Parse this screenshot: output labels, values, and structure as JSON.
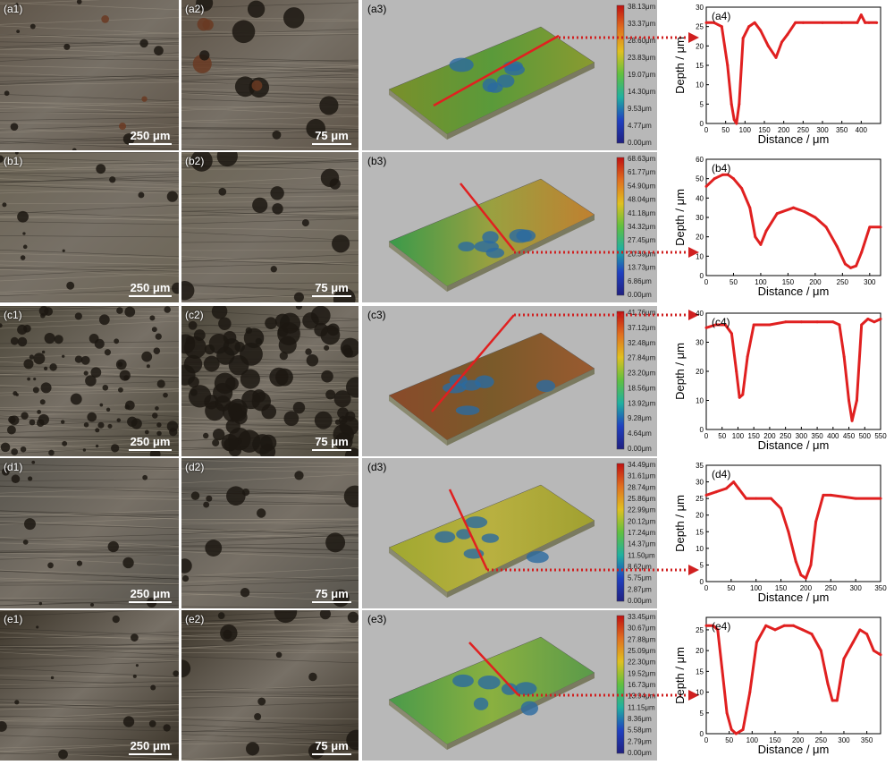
{
  "rows": [
    {
      "id": "a",
      "labels": [
        "(a1)",
        "(a2)",
        "(a3)",
        "(a4)"
      ],
      "scalebars": [
        "250 μm",
        "75 μm"
      ],
      "colorbar": [
        "38.13μm",
        "33.37μm",
        "28.60μm",
        "23.83μm",
        "19.07μm",
        "14.30μm",
        "9.53μm",
        "4.77μm",
        "0.00μm"
      ],
      "tone": "#5e5448"
    },
    {
      "id": "b",
      "labels": [
        "(b1)",
        "(b2)",
        "(b3)",
        "(b4)"
      ],
      "scalebars": [
        "250 μm",
        "75 μm"
      ],
      "colorbar": [
        "68.63μm",
        "61.77μm",
        "54.90μm",
        "48.04μm",
        "41.18μm",
        "34.32μm",
        "27.45μm",
        "20.59μm",
        "13.73μm",
        "6.86μm",
        "0.00μm"
      ],
      "tone": "#6b6455"
    },
    {
      "id": "c",
      "labels": [
        "(c1)",
        "(c2)",
        "(c3)",
        "(c4)"
      ],
      "scalebars": [
        "250 μm",
        "75 μm"
      ],
      "colorbar": [
        "41.76μm",
        "37.12μm",
        "32.48μm",
        "27.84μm",
        "23.20μm",
        "18.56μm",
        "13.92μm",
        "9.28μm",
        "4.64μm",
        "0.00μm"
      ],
      "tone": "#4a4538"
    },
    {
      "id": "d",
      "labels": [
        "(d1)",
        "(d2)",
        "(d3)",
        "(d4)"
      ],
      "scalebars": [
        "250 μm",
        "75 μm"
      ],
      "colorbar": [
        "34.49μm",
        "31.61μm",
        "28.74μm",
        "25.86μm",
        "22.99μm",
        "20.12μm",
        "17.24μm",
        "14.37μm",
        "11.50μm",
        "8.62μm",
        "5.75μm",
        "2.87μm",
        "0.00μm"
      ],
      "tone": "#56534c"
    },
    {
      "id": "e",
      "labels": [
        "(e1)",
        "(e2)",
        "(e3)",
        "(e4)"
      ],
      "scalebars": [
        "250 μm",
        "75 μm"
      ],
      "colorbar": [
        "33.45μm",
        "30.67μm",
        "27.88μm",
        "25.09μm",
        "22.30μm",
        "19.52μm",
        "16.73μm",
        "13.94μm",
        "11.15μm",
        "8.36μm",
        "5.58μm",
        "2.79μm",
        "0.00μm"
      ],
      "tone": "#3a3328"
    }
  ],
  "chart_data": [
    {
      "type": "line",
      "title": "(a4)",
      "xlabel": "Distance / μm",
      "ylabel": "Depth / μm",
      "xlim": [
        0,
        450
      ],
      "ylim": [
        0,
        30
      ],
      "xticks": [
        0,
        50,
        100,
        150,
        200,
        250,
        300,
        350,
        400
      ],
      "yticks": [
        0,
        5,
        10,
        15,
        20,
        25,
        30
      ],
      "series": [
        {
          "x": [
            0,
            20,
            40,
            55,
            65,
            72,
            78,
            85,
            95,
            110,
            125,
            140,
            160,
            180,
            195,
            210,
            230,
            250,
            300,
            350,
            390,
            400,
            410,
            420,
            440
          ],
          "y": [
            26,
            26,
            25,
            15,
            5,
            1,
            0,
            5,
            22,
            25,
            26,
            24,
            20,
            17,
            21,
            23,
            26,
            26,
            26,
            26,
            26,
            28,
            26,
            26,
            26
          ]
        }
      ]
    },
    {
      "type": "line",
      "title": "(b4)",
      "xlabel": "Distance / μm",
      "ylabel": "Depth / μm",
      "xlim": [
        0,
        320
      ],
      "ylim": [
        0,
        60
      ],
      "xticks": [
        0,
        50,
        100,
        150,
        200,
        250,
        300
      ],
      "yticks": [
        0,
        10,
        20,
        30,
        40,
        50,
        60
      ],
      "series": [
        {
          "x": [
            0,
            15,
            30,
            40,
            50,
            65,
            80,
            90,
            100,
            110,
            130,
            160,
            180,
            200,
            220,
            240,
            255,
            265,
            275,
            285,
            300,
            320
          ],
          "y": [
            46,
            50,
            52,
            52,
            50,
            45,
            35,
            20,
            16,
            23,
            32,
            35,
            33,
            30,
            25,
            15,
            6,
            4,
            5,
            12,
            25,
            25
          ]
        }
      ]
    },
    {
      "type": "line",
      "title": "(c4)",
      "xlabel": "Distance / μm",
      "ylabel": "Depth / μm",
      "xlim": [
        0,
        550
      ],
      "ylim": [
        0,
        40
      ],
      "xticks": [
        0,
        50,
        100,
        150,
        200,
        250,
        300,
        350,
        400,
        450,
        500,
        550
      ],
      "yticks": [
        0,
        10,
        20,
        30,
        40
      ],
      "series": [
        {
          "x": [
            0,
            30,
            60,
            80,
            95,
            105,
            115,
            130,
            150,
            200,
            250,
            300,
            350,
            400,
            420,
            435,
            450,
            460,
            475,
            490,
            510,
            530,
            550
          ],
          "y": [
            35,
            36,
            36,
            33,
            20,
            11,
            12,
            25,
            36,
            36,
            37,
            37,
            37,
            37,
            36,
            25,
            10,
            3,
            10,
            36,
            38,
            37,
            38
          ]
        }
      ]
    },
    {
      "type": "line",
      "title": "(d4)",
      "xlabel": "Distance / μm",
      "ylabel": "Depth / μm",
      "xlim": [
        0,
        350
      ],
      "ylim": [
        0,
        35
      ],
      "xticks": [
        0,
        50,
        100,
        150,
        200,
        250,
        300,
        350
      ],
      "yticks": [
        0,
        5,
        10,
        15,
        20,
        25,
        30,
        35
      ],
      "series": [
        {
          "x": [
            0,
            20,
            40,
            55,
            65,
            80,
            100,
            130,
            150,
            165,
            180,
            190,
            200,
            210,
            220,
            235,
            250,
            300,
            350
          ],
          "y": [
            26,
            27,
            28,
            30,
            28,
            25,
            25,
            25,
            22,
            15,
            6,
            2,
            1,
            5,
            18,
            26,
            26,
            25,
            25
          ]
        }
      ]
    },
    {
      "type": "line",
      "title": "(e4)",
      "xlabel": "Distance / μm",
      "ylabel": "Depth / μm",
      "xlim": [
        0,
        380
      ],
      "ylim": [
        0,
        28
      ],
      "xticks": [
        0,
        50,
        100,
        150,
        200,
        250,
        300,
        350
      ],
      "yticks": [
        0,
        5,
        10,
        15,
        20,
        25
      ],
      "series": [
        {
          "x": [
            0,
            15,
            25,
            35,
            45,
            55,
            65,
            80,
            95,
            110,
            130,
            150,
            170,
            190,
            210,
            230,
            250,
            265,
            275,
            285,
            300,
            320,
            335,
            350,
            365,
            380
          ],
          "y": [
            26,
            26,
            25,
            15,
            5,
            1,
            0,
            1,
            10,
            22,
            26,
            25,
            26,
            26,
            25,
            24,
            20,
            12,
            8,
            8,
            18,
            22,
            25,
            24,
            20,
            19
          ]
        }
      ]
    }
  ]
}
